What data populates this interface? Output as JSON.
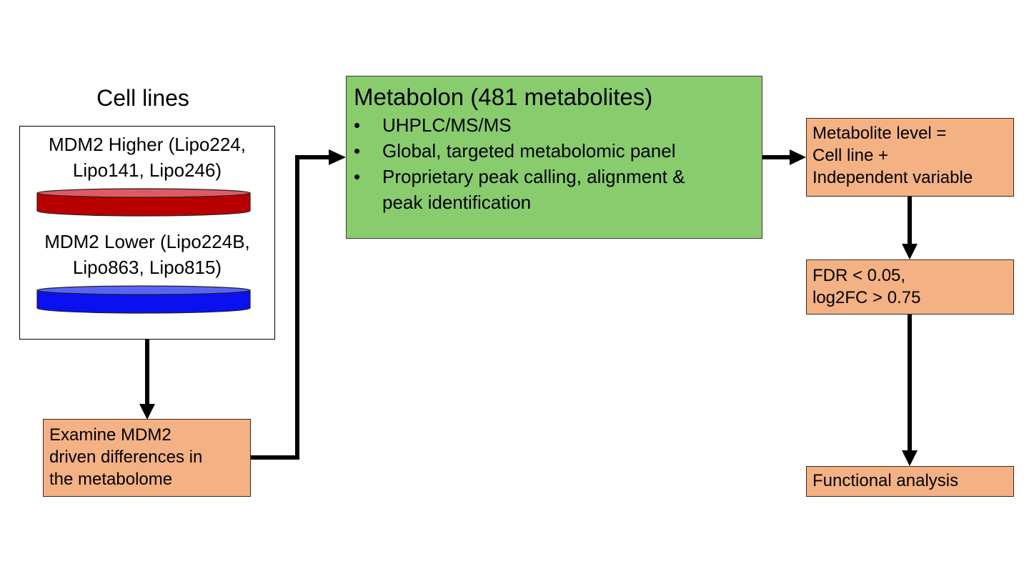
{
  "cell_lines": {
    "title": "Cell lines",
    "higher": {
      "line1": "MDM2 Higher (Lipo224,",
      "line2": "Lipo141, Lipo246)",
      "color": "#b80000"
    },
    "lower": {
      "line1": "MDM2 Lower (Lipo224B,",
      "line2": "Lipo863, Lipo815)",
      "color": "#0a10f0"
    }
  },
  "examine": {
    "line1": "Examine MDM2",
    "line2": "driven differences in",
    "line3": "the metabolome"
  },
  "metabolon": {
    "title": "Metabolon (481 metabolites)",
    "bullet_symbol": "•",
    "bullets": [
      "UHPLC/MS/MS",
      "Global, targeted metabolomic panel",
      "Proprietary peak calling, alignment &",
      "peak identification"
    ]
  },
  "metabolite_level": {
    "line1": "Metabolite level =",
    "line2": "Cell line +",
    "line3": "Independent variable"
  },
  "fdr": {
    "line1": "FDR < 0.05,",
    "line2": "log2FC > 0.75"
  },
  "functional": {
    "label": "Functional analysis"
  },
  "colors": {
    "orange_box": "#f4b183",
    "green_box": "#88cc6e",
    "arrow": "#000000"
  }
}
